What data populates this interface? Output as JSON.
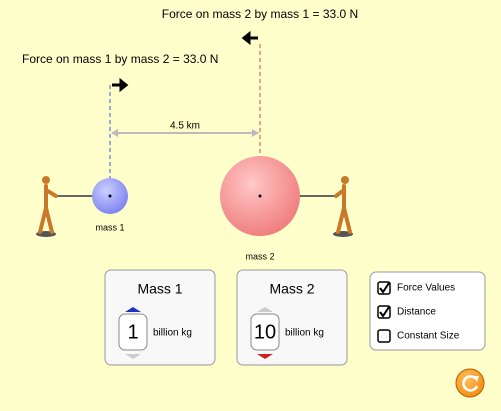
{
  "forces": {
    "on_mass_2": "Force on mass 2 by mass 1 = 33.0 N",
    "on_mass_1": "Force on mass 1 by mass 2 = 33.0 N"
  },
  "distance": "4.5 km",
  "masses": [
    {
      "label": "mass 1"
    },
    {
      "label": "mass 2"
    }
  ],
  "panels": [
    {
      "title": "Mass 1",
      "value": "1",
      "unit": "billion kg"
    },
    {
      "title": "Mass 2",
      "value": "10",
      "unit": "billion kg"
    }
  ],
  "options": [
    {
      "label": "Force Values",
      "checked": true
    },
    {
      "label": "Distance",
      "checked": true
    },
    {
      "label": "Constant Size",
      "checked": false
    }
  ]
}
